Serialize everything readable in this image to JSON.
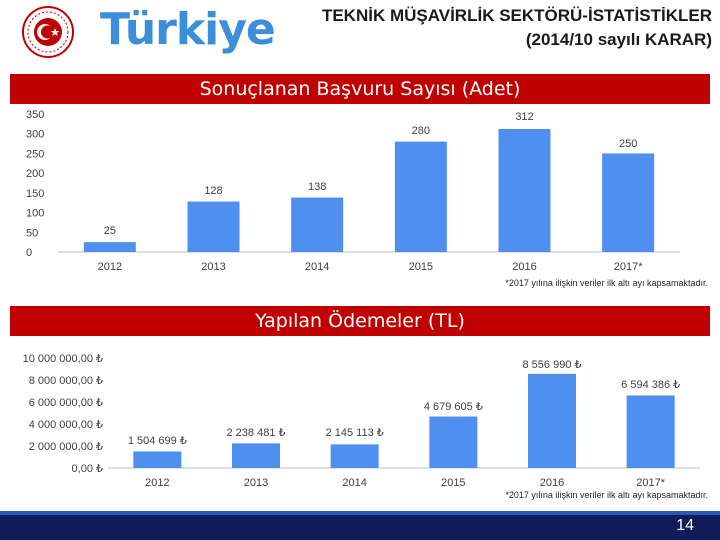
{
  "header": {
    "title_line1": "TEKNİK MÜŞAVİRLİK SEKTÖRÜ-İSTATİSTİKLER",
    "title_line2": "(2014/10 sayılı KARAR)",
    "brand": "Türkiye"
  },
  "chart1_title": "Sonuçlanan Başvuru Sayısı (Adet)",
  "chart2_title": "Yapılan Ödemeler (TL)",
  "footer": {
    "page_number": "14"
  },
  "colors": {
    "bar": "#4f8ff0",
    "banner": "#c00000",
    "footer": "#0f1e5a",
    "brand": "#3d8ed8"
  },
  "chart_data": [
    {
      "type": "bar",
      "title": "Sonuçlanan Başvuru Sayısı (Adet)",
      "categories": [
        "2012",
        "2013",
        "2014",
        "2015",
        "2016",
        "2017*"
      ],
      "values": [
        25,
        128,
        138,
        280,
        312,
        250
      ],
      "value_labels": [
        "25",
        "128",
        "138",
        "280",
        "312",
        "250"
      ],
      "yticks": [
        "0",
        "50",
        "100",
        "150",
        "200",
        "250",
        "300",
        "350"
      ],
      "ylim": [
        0,
        350
      ],
      "grid": false,
      "note": "*2017 yılına ilişkin veriler ilk altı ayı kapsamaktadır."
    },
    {
      "type": "bar",
      "title": "Yapılan Ödemeler (TL)",
      "categories": [
        "2012",
        "2013",
        "2014",
        "2015",
        "2016",
        "2017*"
      ],
      "values": [
        1504699,
        2238481,
        2145113,
        4679605,
        8556990,
        6594386
      ],
      "value_labels": [
        "1 504 699 ₺",
        "2 238 481 ₺",
        "2 145 113 ₺",
        "4 679 605 ₺",
        "8 556 990 ₺",
        "6 594 386 ₺"
      ],
      "yticks": [
        "0,00 ₺",
        "2 000 000,00 ₺",
        "4 000 000,00 ₺",
        "6 000 000,00 ₺",
        "8 000 000,00 ₺",
        "10 000 000,00 ₺"
      ],
      "ylim": [
        0,
        10000000
      ],
      "grid": false,
      "note": "*2017 yılına ilişkin veriler ilk altı ayı kapsamaktadır."
    }
  ]
}
